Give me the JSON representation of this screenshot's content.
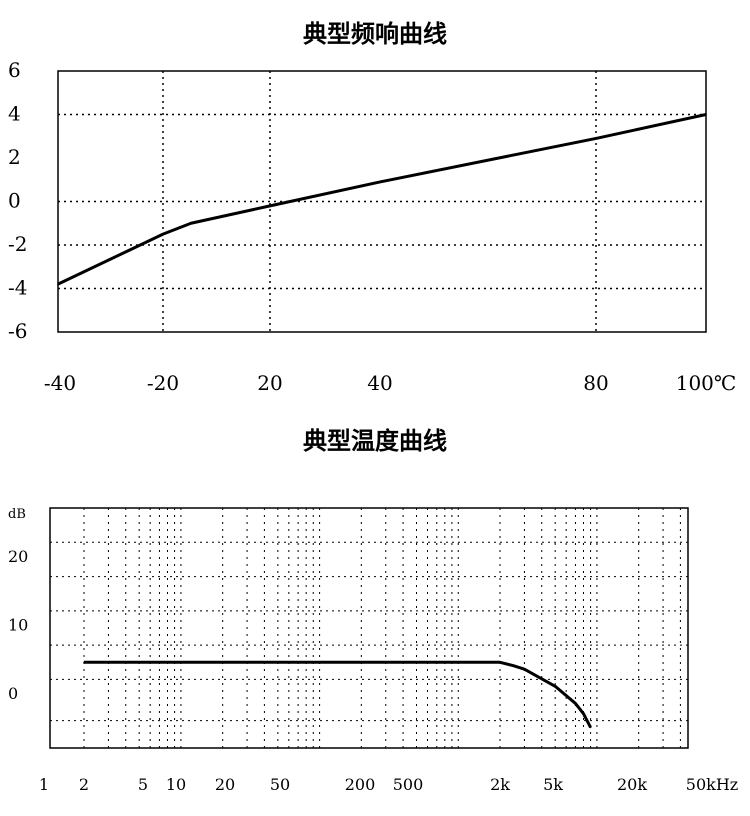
{
  "chart_data": [
    {
      "type": "line",
      "title": "典型频响曲线",
      "x": [
        -40,
        -20,
        -10,
        20,
        40,
        80,
        100
      ],
      "series": [
        {
          "values": [
            -3.8,
            -1.5,
            -1.0,
            -0.2,
            0.9,
            2.9,
            4.0
          ]
        }
      ],
      "xticks": [
        "-40",
        "-20",
        "20",
        "40",
        "80",
        "100℃"
      ],
      "yticks": [
        "6",
        "4",
        "2",
        "0",
        "-2",
        "-4",
        "-6"
      ],
      "ylim": [
        -6,
        6
      ],
      "grid": true
    },
    {
      "type": "line",
      "title": "典型温度曲线",
      "x": [
        2,
        2000,
        2500,
        3000,
        5000,
        7000,
        8000,
        9000
      ],
      "series": [
        {
          "values": [
            4.5,
            4.5,
            4.0,
            3.5,
            1.0,
            -1.5,
            -3.0,
            -5.0
          ]
        }
      ],
      "xscale": "log",
      "xticks": [
        "1",
        "2",
        "5",
        "10",
        "20",
        "50",
        "200",
        "500",
        "2k",
        "5k",
        "20k",
        "50kHz"
      ],
      "yunit": "dB",
      "yticks": [
        "20",
        "10",
        "0"
      ],
      "ylim": [
        -8,
        27
      ],
      "grid": true
    }
  ]
}
